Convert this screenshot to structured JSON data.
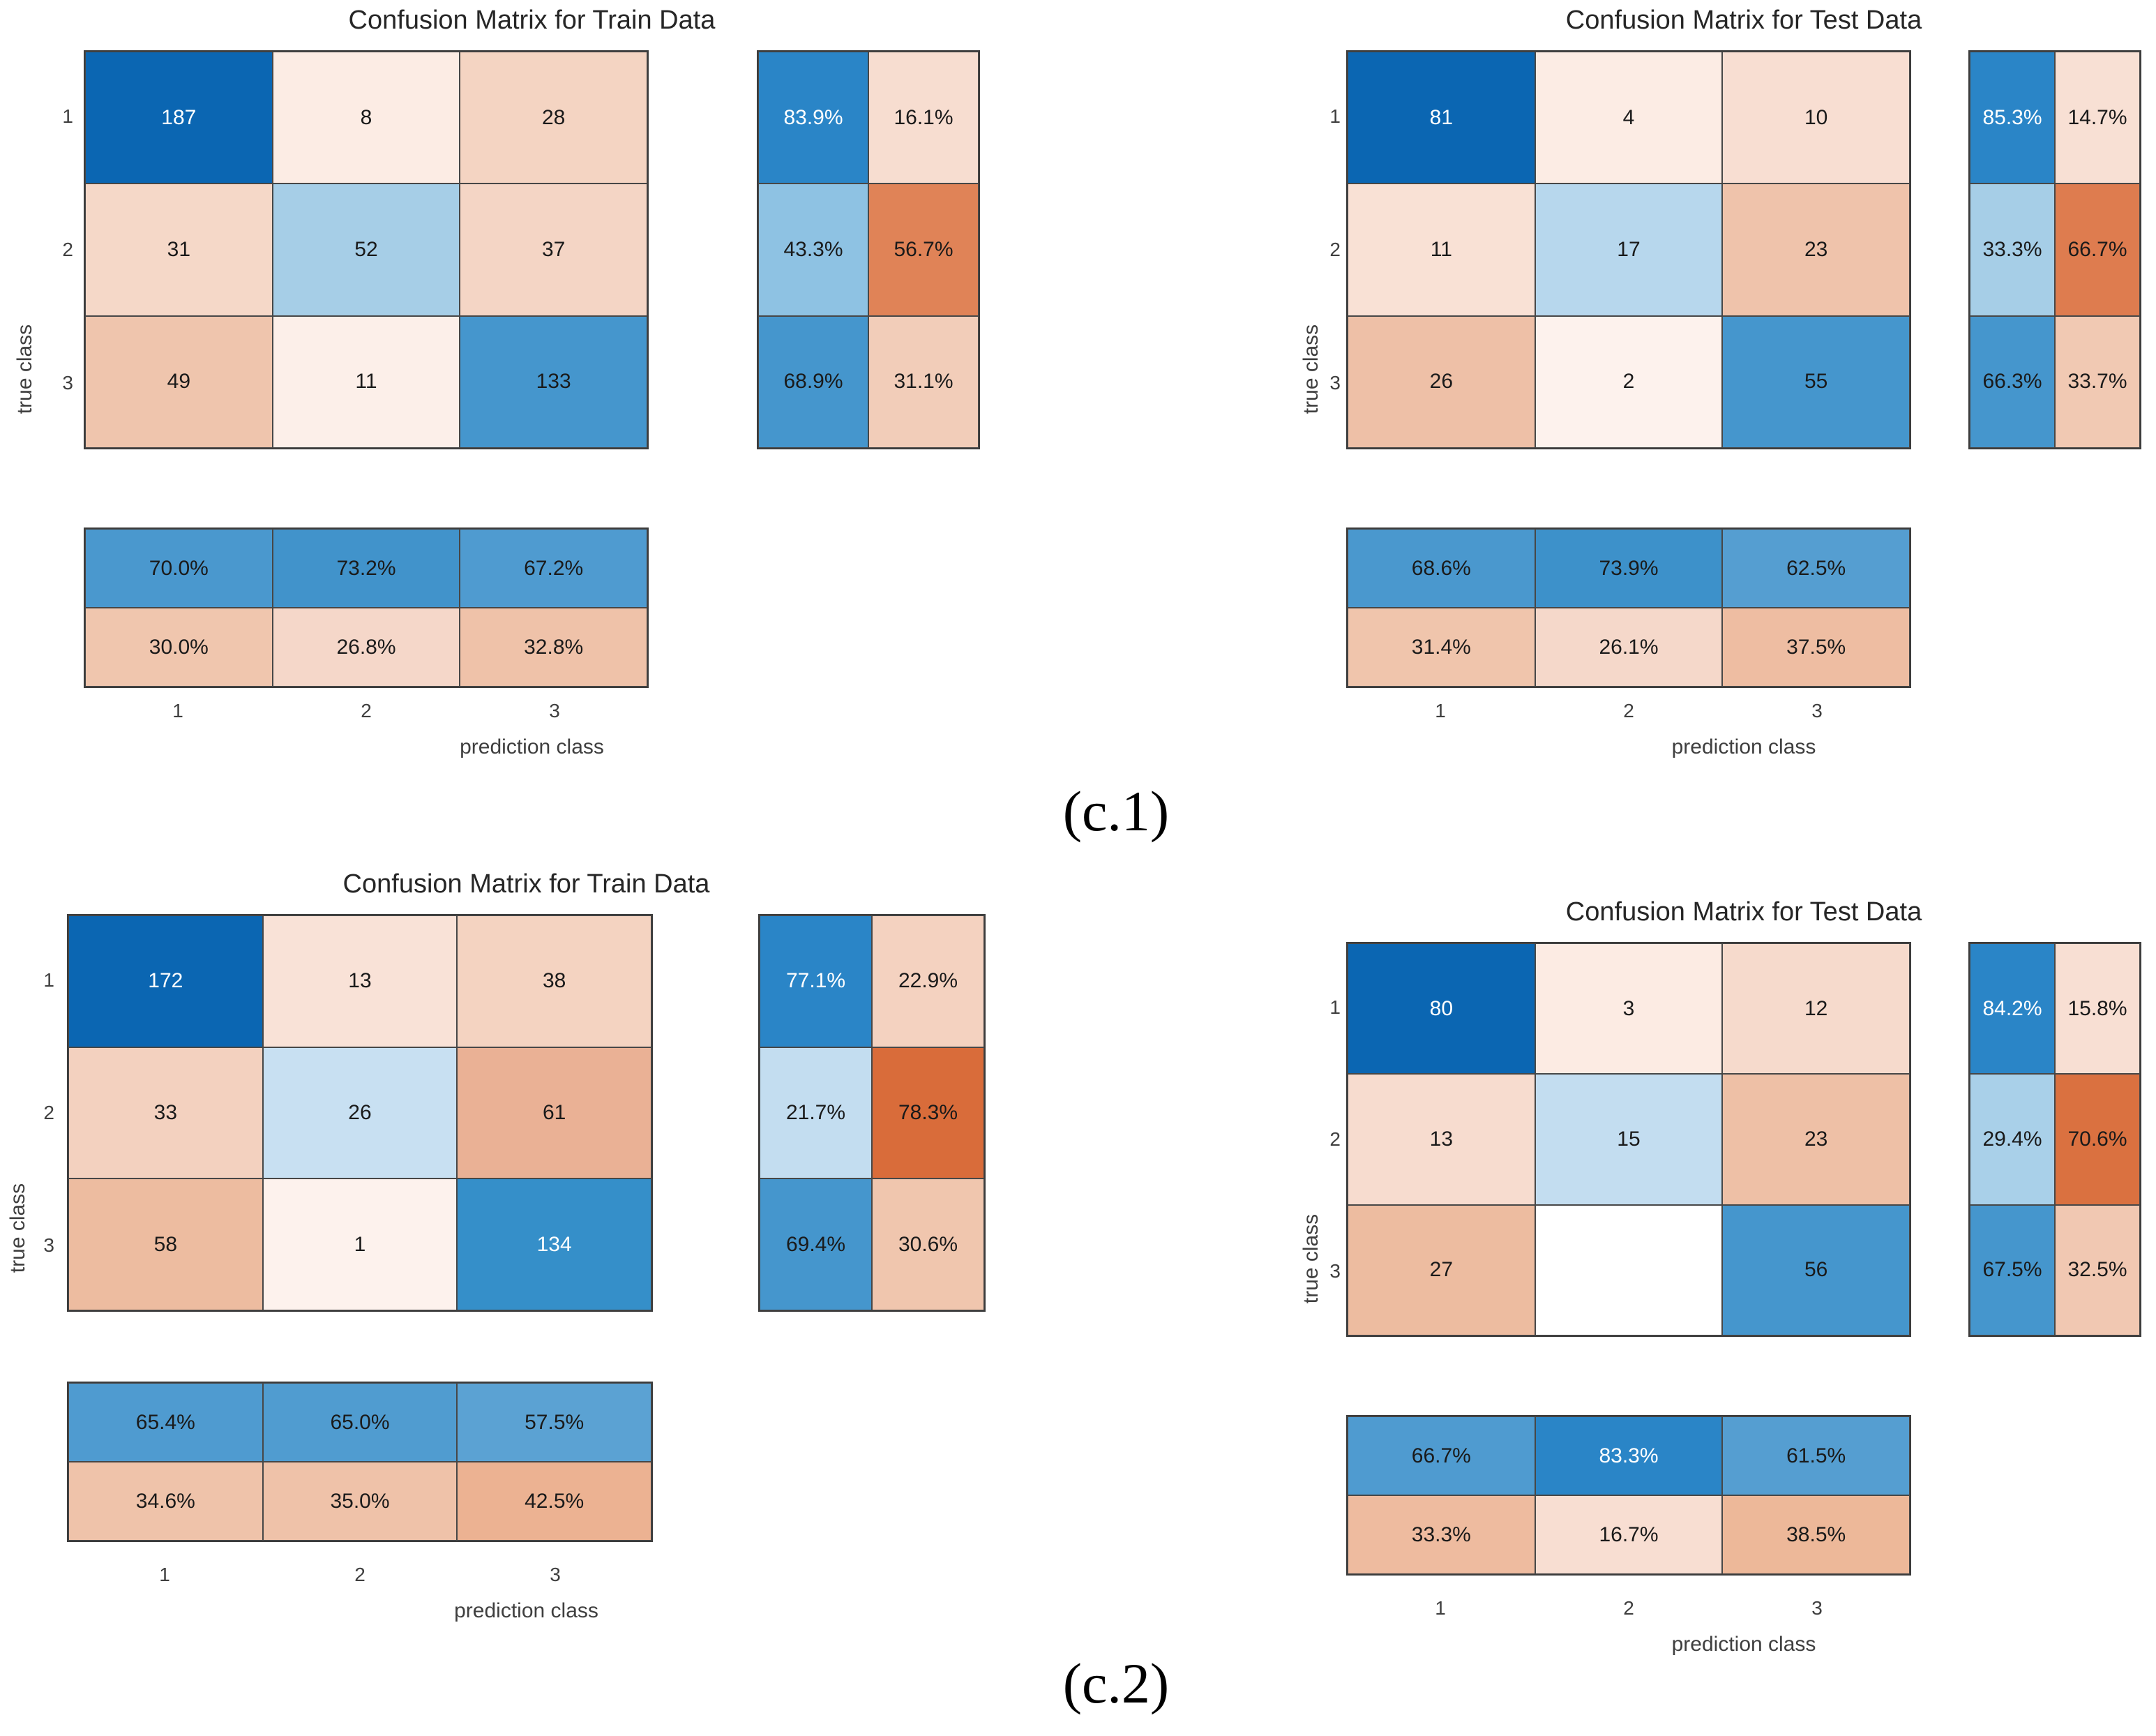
{
  "captions": {
    "c1": "(c.1)",
    "c2": "(c.2)"
  },
  "colors": {
    "title_text": "#262626",
    "tick_text": "#3f3f3f",
    "cell_text_dark": "#1a1a1a",
    "cell_text_light": "#ffffff",
    "grid_border": "#3c3c3c",
    "diag_dark_blue": "#0b66b2",
    "diag_mid_blue": "#4596cd",
    "offdiag_orange": "#d96c3a"
  },
  "chart_data": [
    {
      "id": "train-c1",
      "type": "heatmap",
      "title": "Confusion Matrix for Train Data",
      "xlabel": "prediction class",
      "ylabel": "true class",
      "x_ticks": [
        "1",
        "2",
        "3"
      ],
      "y_ticks": [
        "1",
        "2",
        "3"
      ],
      "matrix": [
        [
          187,
          8,
          28
        ],
        [
          31,
          52,
          37
        ],
        [
          49,
          11,
          133
        ]
      ],
      "row_percent": [
        [
          "83.9%",
          "16.1%"
        ],
        [
          "43.3%",
          "56.7%"
        ],
        [
          "68.9%",
          "31.1%"
        ]
      ],
      "col_percent": [
        [
          "70.0%",
          "73.2%",
          "67.2%"
        ],
        [
          "30.0%",
          "26.8%",
          "32.8%"
        ]
      ],
      "cell_colors": {
        "matrix": [
          [
            "#0b66b2",
            "#fcece4",
            "#f4d4c2"
          ],
          [
            "#f5d8c8",
            "#a6cee7",
            "#f4d5c5"
          ],
          [
            "#efc5ad",
            "#fcefe9",
            "#4596cd"
          ]
        ],
        "row_summary": [
          [
            "#2a85c7",
            "#f7ddd0"
          ],
          [
            "#8ec2e3",
            "#e08357"
          ],
          [
            "#4596cd",
            "#f2cdb9"
          ]
        ],
        "col_summary": [
          [
            "#4a98ce",
            "#4193cb",
            "#4f9bd0"
          ],
          [
            "#f0c6ae",
            "#f5d7c9",
            "#efc2a9"
          ]
        ]
      },
      "white_text": {
        "matrix": [
          [
            0,
            0
          ]
        ],
        "row_summary": [
          [
            0,
            0
          ]
        ],
        "col_summary": []
      }
    },
    {
      "id": "test-c1",
      "type": "heatmap",
      "title": "Confusion Matrix for Test Data",
      "xlabel": "prediction class",
      "ylabel": "true class",
      "x_ticks": [
        "1",
        "2",
        "3"
      ],
      "y_ticks": [
        "1",
        "2",
        "3"
      ],
      "matrix": [
        [
          81,
          4,
          10
        ],
        [
          11,
          17,
          23
        ],
        [
          26,
          2,
          55
        ]
      ],
      "row_percent": [
        [
          "85.3%",
          "14.7%"
        ],
        [
          "33.3%",
          "66.7%"
        ],
        [
          "66.3%",
          "33.7%"
        ]
      ],
      "col_percent": [
        [
          "68.6%",
          "73.9%",
          "62.5%"
        ],
        [
          "31.4%",
          "26.1%",
          "37.5%"
        ]
      ],
      "cell_colors": {
        "matrix": [
          [
            "#0b66b2",
            "#fcece4",
            "#f8ded2"
          ],
          [
            "#f9e1d5",
            "#b7d7ed",
            "#efc3ab"
          ],
          [
            "#eec0a7",
            "#fdf2ed",
            "#4596cd"
          ]
        ],
        "row_summary": [
          [
            "#2a85c7",
            "#f8e0d4"
          ],
          [
            "#a6cee7",
            "#de7c4f"
          ],
          [
            "#4596cd",
            "#f1c9b3"
          ]
        ],
        "col_summary": [
          [
            "#4a98ce",
            "#3d91ca",
            "#559ed1"
          ],
          [
            "#f0c5ac",
            "#f5d8ca",
            "#eebda2"
          ]
        ]
      },
      "white_text": {
        "matrix": [
          [
            0,
            0
          ]
        ],
        "row_summary": [
          [
            0,
            0
          ]
        ],
        "col_summary": []
      }
    },
    {
      "id": "train-c2",
      "type": "heatmap",
      "title": "Confusion Matrix for Train Data",
      "xlabel": "prediction class",
      "ylabel": "true class",
      "x_ticks": [
        "1",
        "2",
        "3"
      ],
      "y_ticks": [
        "1",
        "2",
        "3"
      ],
      "matrix": [
        [
          172,
          13,
          38
        ],
        [
          33,
          26,
          61
        ],
        [
          58,
          1,
          134
        ]
      ],
      "row_percent": [
        [
          "77.1%",
          "22.9%"
        ],
        [
          "21.7%",
          "78.3%"
        ],
        [
          "69.4%",
          "30.6%"
        ]
      ],
      "col_percent": [
        [
          "65.4%",
          "65.0%",
          "57.5%"
        ],
        [
          "34.6%",
          "35.0%",
          "42.5%"
        ]
      ],
      "cell_colors": {
        "matrix": [
          [
            "#0b66b2",
            "#f9e2d7",
            "#f4d3c1"
          ],
          [
            "#f3d1bf",
            "#c8e0f2",
            "#eab195"
          ],
          [
            "#edbca0",
            "#fdf2ed",
            "#358fc9"
          ]
        ],
        "row_summary": [
          [
            "#2a85c7",
            "#f4d2c0"
          ],
          [
            "#c3ddf0",
            "#d96c3a"
          ],
          [
            "#4596cd",
            "#f0c6ae"
          ]
        ],
        "col_summary": [
          [
            "#4f9bd0",
            "#509cd0",
            "#5ba2d3"
          ],
          [
            "#efc3aa",
            "#efc2a9",
            "#ecb292"
          ]
        ]
      },
      "white_text": {
        "matrix": [
          [
            0,
            0
          ],
          [
            2,
            2
          ]
        ],
        "row_summary": [
          [
            0,
            0
          ]
        ],
        "col_summary": []
      }
    },
    {
      "id": "test-c2",
      "type": "heatmap",
      "title": "Confusion Matrix for Test Data",
      "xlabel": "prediction class",
      "ylabel": "true class",
      "x_ticks": [
        "1",
        "2",
        "3"
      ],
      "y_ticks": [
        "1",
        "2",
        "3"
      ],
      "matrix": [
        [
          80,
          3,
          12
        ],
        [
          13,
          15,
          23
        ],
        [
          27,
          "",
          56
        ]
      ],
      "row_percent": [
        [
          "84.2%",
          "15.8%"
        ],
        [
          "29.4%",
          "70.6%"
        ],
        [
          "67.5%",
          "32.5%"
        ]
      ],
      "col_percent": [
        [
          "66.7%",
          "83.3%",
          "61.5%"
        ],
        [
          "33.3%",
          "16.7%",
          "38.5%"
        ]
      ],
      "cell_colors": {
        "matrix": [
          [
            "#0b66b2",
            "#fcebe3",
            "#f6dacc"
          ],
          [
            "#f7dccf",
            "#c3ddf0",
            "#eec0a6"
          ],
          [
            "#edbca0",
            "#ffffff",
            "#4596cd"
          ]
        ],
        "row_summary": [
          [
            "#2a85c7",
            "#f8dfd3"
          ],
          [
            "#a9d0e9",
            "#da7140"
          ],
          [
            "#4596cd",
            "#f1c8b2"
          ]
        ],
        "col_summary": [
          [
            "#4f9bd0",
            "#2a85c7",
            "#559ed1"
          ],
          [
            "#eebb9f",
            "#f8ded2",
            "#edb899"
          ]
        ]
      },
      "white_text": {
        "matrix": [
          [
            0,
            0
          ]
        ],
        "row_summary": [
          [
            0,
            0
          ]
        ],
        "col_summary": [
          [
            0,
            1
          ]
        ]
      }
    }
  ]
}
